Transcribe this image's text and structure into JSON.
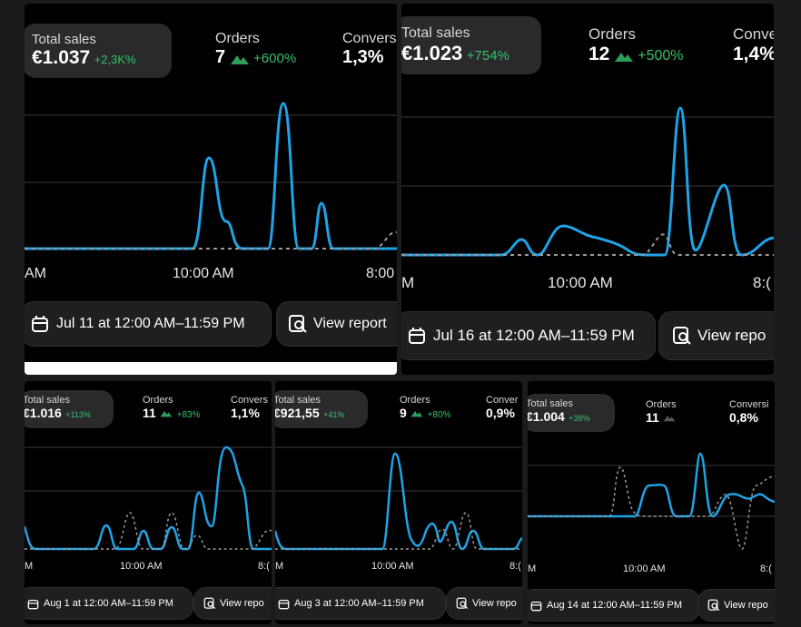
{
  "panels": [
    {
      "total_label": "Total sales",
      "total_value": "€1.037",
      "total_change": "+2,3K%",
      "orders_label": "Orders",
      "orders_value": "7",
      "orders_change": "+600%",
      "conv_label": "Convers",
      "conv_value": "1,3%",
      "axis": [
        "AM",
        "10:00 AM",
        "8:00"
      ],
      "date_label": "Jul 11 at 12:00 AM–11:59 PM",
      "report_label": "View report"
    },
    {
      "total_label": "Total sales",
      "total_value": "€1.023",
      "total_change": "+754%",
      "orders_label": "Orders",
      "orders_value": "12",
      "orders_change": "+500%",
      "conv_label": "Conve",
      "conv_value": "1,4%",
      "axis": [
        "M",
        "10:00 AM",
        "8:("
      ],
      "date_label": "Jul 16 at 12:00 AM–11:59 PM",
      "report_label": "View repo"
    },
    {
      "total_label": "Total sales",
      "total_value": "€1.016",
      "total_change": "+113%",
      "orders_label": "Orders",
      "orders_value": "11",
      "orders_change": "+83%",
      "conv_label": "Convers",
      "conv_value": "1,1%",
      "axis": [
        "M",
        "10:00 AM",
        "8:("
      ],
      "date_label": "Aug 1 at 12:00 AM–11:59 PM",
      "report_label": "View repo"
    },
    {
      "total_label": "Total sales",
      "total_value": "€921,55",
      "total_change": "+41%",
      "orders_label": "Orders",
      "orders_value": "9",
      "orders_change": "+80%",
      "conv_label": "Conver",
      "conv_value": "0,9%",
      "axis": [
        "M",
        "10:00 AM",
        "8:("
      ],
      "date_label": "Aug 3 at 12:00 AM–11:59 PM",
      "report_label": "View repo"
    },
    {
      "total_label": "Total sales",
      "total_value": "€1.004",
      "total_change": "+38%",
      "orders_label": "Orders",
      "orders_value": "11",
      "orders_change": "",
      "conv_label": "Conversi",
      "conv_value": "0,8%",
      "axis": [
        "M",
        "10:00 AM",
        "8:("
      ],
      "date_label": "Aug 14 at 12:00 AM–11:59 PM",
      "report_label": "View repo"
    }
  ],
  "colors": {
    "line": "#1fa3e6",
    "compare": "#9a9a9a",
    "positive": "#34c26a",
    "grid": "#3a3a3a"
  }
}
